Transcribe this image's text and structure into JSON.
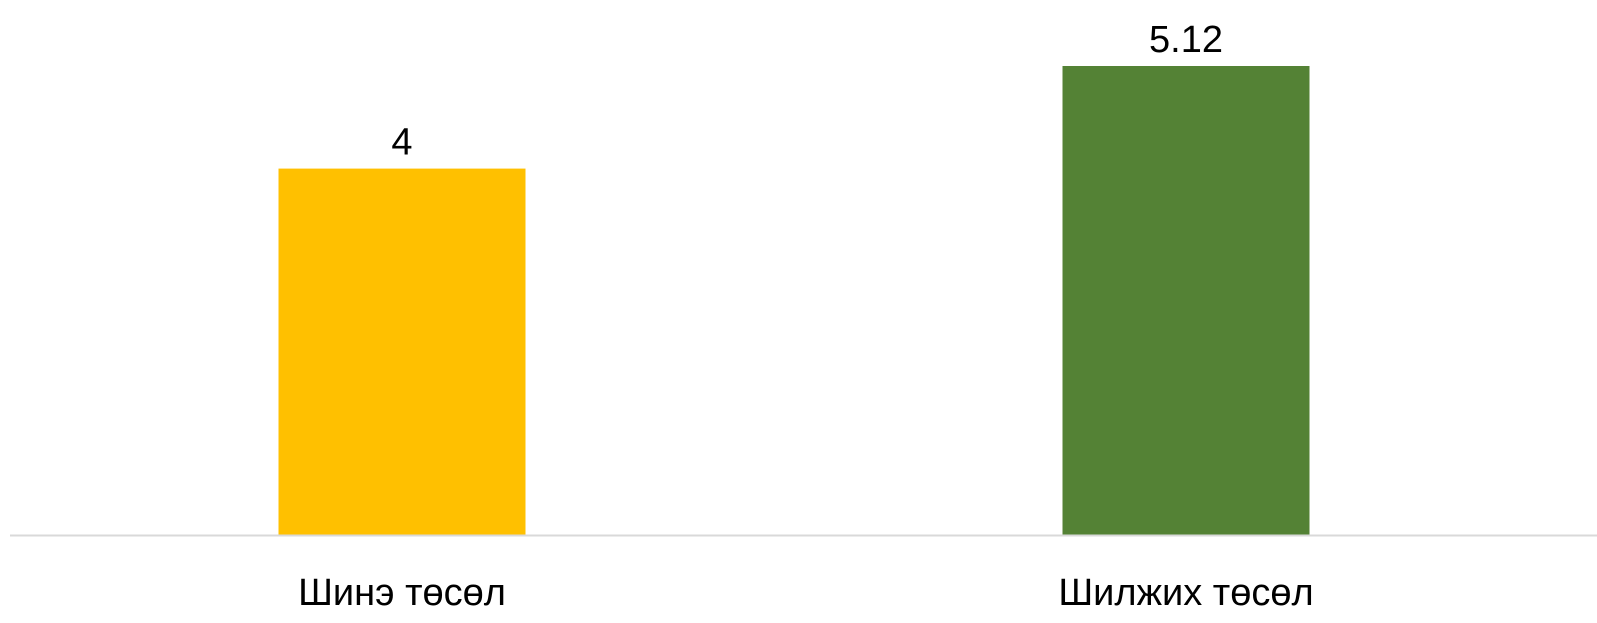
{
  "chart_data": {
    "type": "bar",
    "categories": [
      "Шинэ төсөл",
      "Шилжих төсөл"
    ],
    "values": [
      4,
      5.12
    ],
    "data_labels": [
      "4",
      "5.12"
    ],
    "title": "",
    "xlabel": "",
    "ylabel": "",
    "ylim": [
      0,
      5.12
    ],
    "grid": false,
    "legend": "none",
    "colors": [
      "#FFC000",
      "#548235"
    ],
    "axis_color": "#D9D9D9"
  }
}
